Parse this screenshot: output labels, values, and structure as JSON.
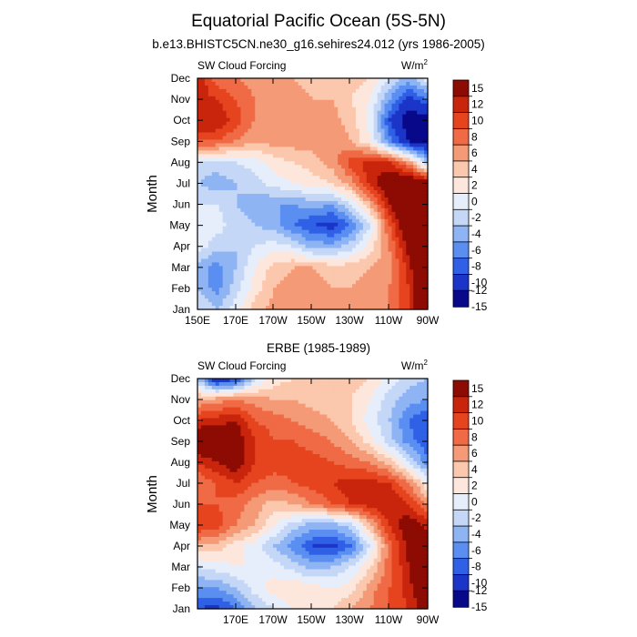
{
  "figure": {
    "title": "Equatorial Pacific Ocean (5S-5N)",
    "colors": [
      "#08088a",
      "#1a35c8",
      "#2f60e6",
      "#5a8ef0",
      "#8fb4f4",
      "#c5d7f7",
      "#e7eefb",
      "#fde7dc",
      "#fbc7ad",
      "#f59a76",
      "#ef6a45",
      "#e6441f",
      "#c9250c",
      "#8c0b02"
    ]
  },
  "chart_data": [
    {
      "type": "heatmap",
      "title": "b.e13.BHISTC5CN.ne30_g16.sehires24.012 (yrs 1986-2005)",
      "left_label": "SW Cloud Forcing",
      "units_text": "W/m",
      "units_sup": "2",
      "ylabel": "Month",
      "x_ticks": [
        "150E",
        "170E",
        "170W",
        "150W",
        "130W",
        "110W",
        "90W"
      ],
      "y_ticks": [
        "Jan",
        "Feb",
        "Mar",
        "Apr",
        "May",
        "Jun",
        "Jul",
        "Aug",
        "Sep",
        "Oct",
        "Nov",
        "Dec"
      ],
      "colorbar_labels": [
        "15",
        "12",
        "10",
        "8",
        "6",
        "4",
        "2",
        "0",
        "-2",
        "-4",
        "-6",
        "-8",
        "-10",
        "-12",
        "-15"
      ],
      "levels": [
        -15,
        -12,
        -10,
        -8,
        -6,
        -4,
        -2,
        0,
        2,
        4,
        6,
        8,
        10,
        12,
        15
      ],
      "x": [
        150,
        160,
        170,
        180,
        190,
        200,
        210,
        220,
        230,
        240,
        250,
        260,
        270
      ],
      "months": [
        "Jan",
        "Feb",
        "Mar",
        "Apr",
        "May",
        "Jun",
        "Jul",
        "Aug",
        "Sep",
        "Oct",
        "Nov",
        "Dec"
      ],
      "z": [
        [
          -4,
          -6,
          -3,
          1,
          3,
          3,
          4,
          4,
          4,
          3,
          4,
          8,
          14
        ],
        [
          -6,
          -9,
          -5,
          -1,
          2,
          3,
          3,
          2,
          2,
          3,
          4,
          8,
          15
        ],
        [
          -7,
          -9,
          -6,
          -2,
          1,
          2,
          2,
          1,
          1,
          2,
          3,
          9,
          16
        ],
        [
          -3,
          -5,
          -6,
          -4,
          -3,
          -4,
          -7,
          -7,
          -5,
          -1,
          4,
          11,
          17
        ],
        [
          -2,
          -3,
          -5,
          -6,
          -7,
          -10,
          -12,
          -13,
          -10,
          -4,
          6,
          14,
          17
        ],
        [
          -4,
          -4,
          -6,
          -7,
          -8,
          -8,
          -7,
          -8,
          -4,
          2,
          10,
          16,
          16
        ],
        [
          -6,
          -7,
          -6,
          -5,
          -3,
          -2,
          -1,
          0,
          3,
          9,
          13,
          14,
          12
        ],
        [
          -5,
          -5,
          -4,
          -3,
          -1,
          0,
          1,
          3,
          7,
          9,
          8,
          3,
          -6
        ],
        [
          6,
          6,
          4,
          2,
          3,
          3,
          3,
          4,
          2,
          -2,
          -9,
          -15,
          -17
        ],
        [
          10,
          10,
          7,
          4,
          4,
          4,
          3,
          3,
          1,
          -3,
          -12,
          -17,
          -17
        ],
        [
          9,
          8,
          6,
          4,
          3,
          3,
          2,
          2,
          0,
          -2,
          -8,
          -13,
          -10
        ],
        [
          10,
          5,
          4,
          3,
          2,
          2,
          1,
          1,
          1,
          0,
          -4,
          -7,
          -3
        ]
      ]
    },
    {
      "type": "heatmap",
      "title": "ERBE (1985-1989)",
      "left_label": "SW Cloud Forcing",
      "units_text": "W/m",
      "units_sup": "2",
      "ylabel": "Month",
      "x_ticks": [
        "170E",
        "170W",
        "150W",
        "130W",
        "110W",
        "90W"
      ],
      "y_ticks": [
        "Jan",
        "Feb",
        "Mar",
        "Apr",
        "May",
        "Jun",
        "Jul",
        "Aug",
        "Sep",
        "Oct",
        "Nov",
        "Dec"
      ],
      "colorbar_labels": [
        "15",
        "12",
        "10",
        "8",
        "6",
        "4",
        "2",
        "0",
        "-2",
        "-4",
        "-6",
        "-8",
        "-10",
        "-12",
        "-15"
      ],
      "levels": [
        -15,
        -12,
        -10,
        -8,
        -6,
        -4,
        -2,
        0,
        2,
        4,
        6,
        8,
        10,
        12,
        15
      ],
      "x": [
        150,
        160,
        170,
        180,
        190,
        200,
        210,
        220,
        230,
        240,
        250,
        260,
        270
      ],
      "months": [
        "Jan",
        "Feb",
        "Mar",
        "Apr",
        "May",
        "Jun",
        "Jul",
        "Aug",
        "Sep",
        "Oct",
        "Nov",
        "Dec"
      ],
      "z": [
        [
          -12,
          -13,
          -10,
          -6,
          -4,
          -2,
          -1,
          0,
          2,
          4,
          6,
          8,
          12
        ],
        [
          -8,
          -8,
          -6,
          -3,
          -1,
          0,
          -1,
          -2,
          -1,
          3,
          6,
          9,
          14
        ],
        [
          -4,
          -3,
          -2,
          -2,
          -3,
          -5,
          -7,
          -6,
          -4,
          0,
          5,
          10,
          16
        ],
        [
          2,
          1,
          -1,
          -3,
          -6,
          -9,
          -12,
          -13,
          -10,
          -4,
          5,
          11,
          12
        ],
        [
          8,
          7,
          4,
          2,
          -2,
          -5,
          -7,
          -7,
          -5,
          2,
          8,
          12,
          9
        ],
        [
          6,
          6,
          5,
          3,
          1,
          2,
          4,
          6,
          8,
          9,
          10,
          8,
          4
        ],
        [
          4,
          6,
          8,
          6,
          5,
          6,
          7,
          8,
          9,
          9,
          8,
          4,
          -2
        ],
        [
          8,
          10,
          12,
          8,
          7,
          7,
          7,
          6,
          5,
          4,
          1,
          -4,
          -9
        ],
        [
          14,
          13,
          12,
          8,
          6,
          6,
          5,
          4,
          2,
          -1,
          -5,
          -9,
          -12
        ],
        [
          8,
          9,
          10,
          6,
          5,
          4,
          3,
          2,
          0,
          -3,
          -6,
          -10,
          -12
        ],
        [
          2,
          3,
          4,
          3,
          2,
          2,
          1,
          1,
          0,
          -2,
          -5,
          -7,
          -8
        ],
        [
          -6,
          -15,
          -13,
          -5,
          -1,
          0,
          0,
          1,
          1,
          0,
          -3,
          -5,
          -6
        ]
      ]
    }
  ]
}
